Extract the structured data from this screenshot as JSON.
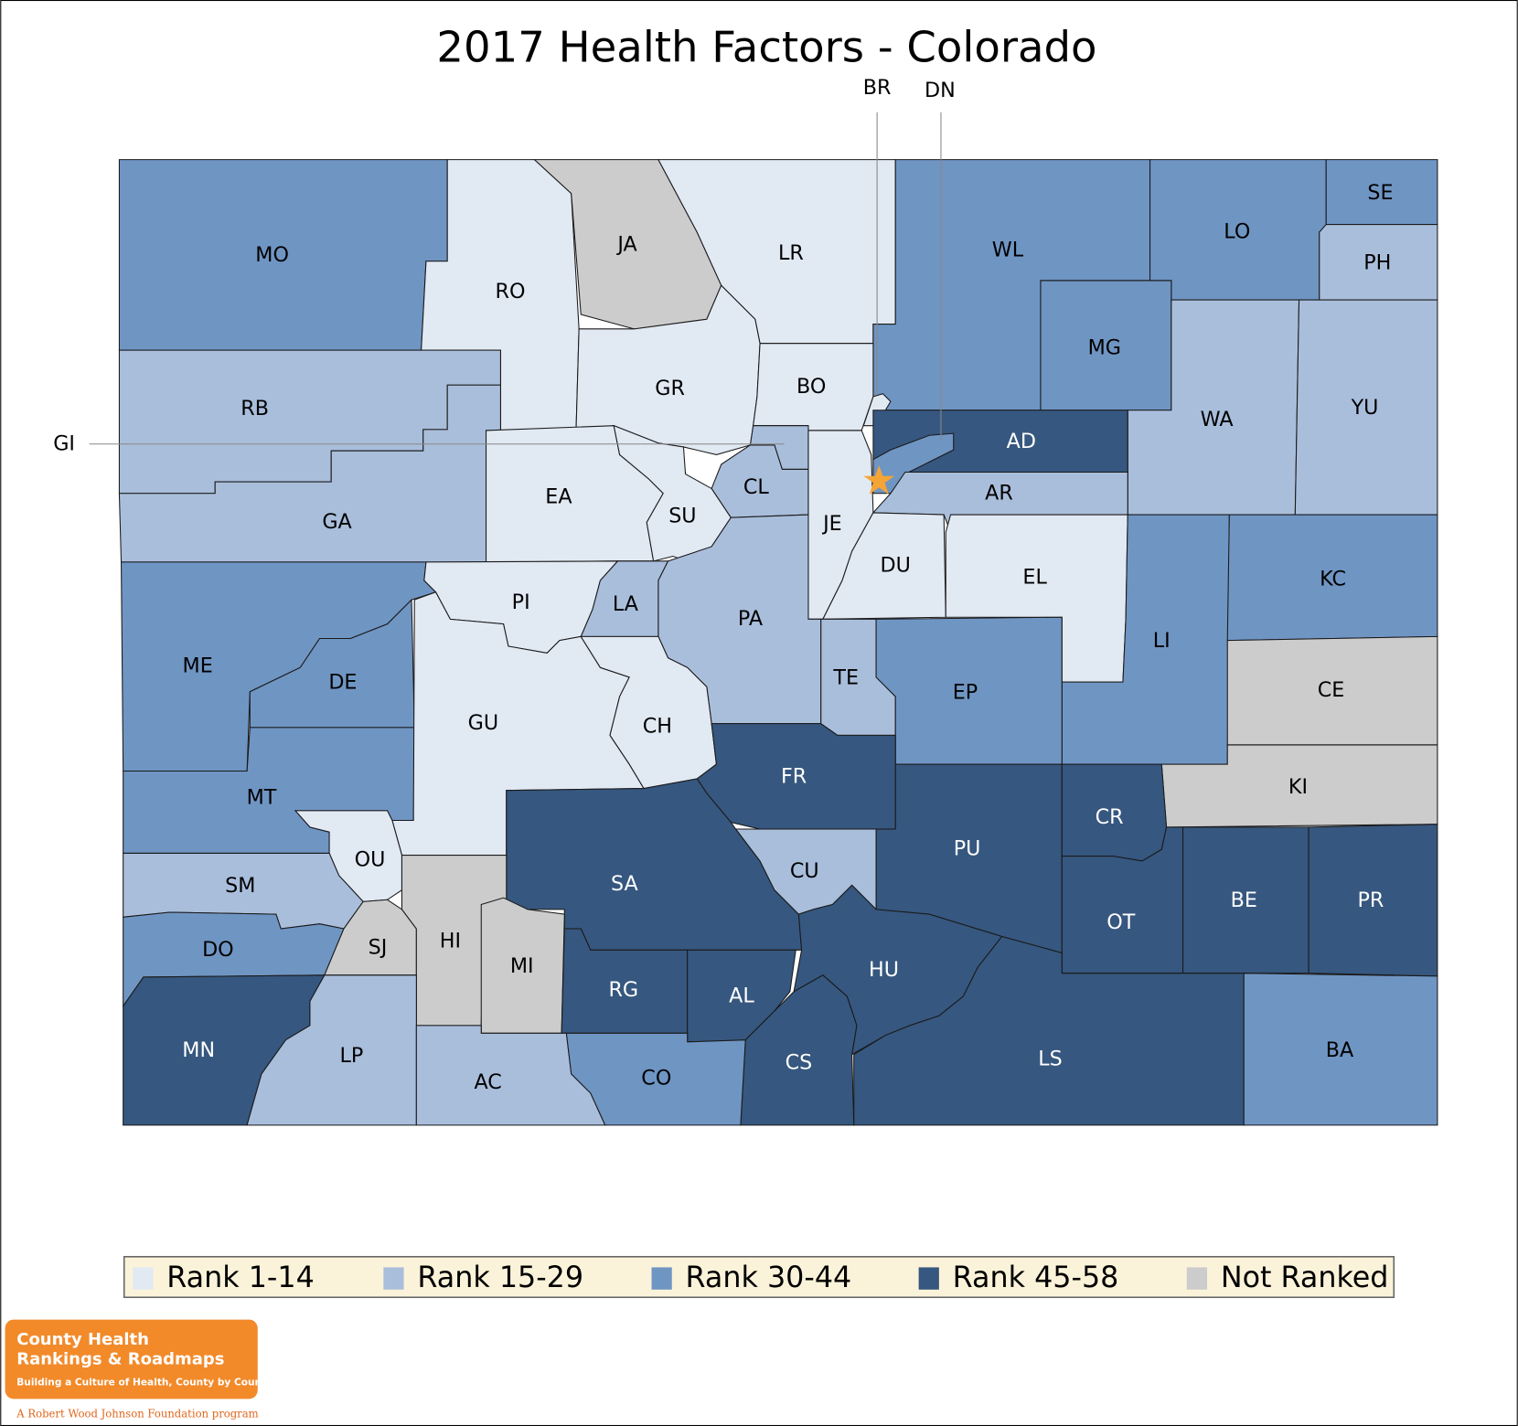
{
  "title": "2017 Health Factors - Colorado",
  "colors": {
    "rank_1_14": "#e1e9f3",
    "rank_15_29": "#a9bedb",
    "rank_30_44": "#6f95c3",
    "rank_45_58": "#36577f",
    "not_ranked": "#cccccc",
    "legend_bg": "#fbf3d9",
    "highlight_star": "#f5a535",
    "logo_orange": "#f28a2a"
  },
  "legend": [
    {
      "label": "Rank 1-14",
      "class": "rank_1_14"
    },
    {
      "label": "Rank 15-29",
      "class": "rank_15_29"
    },
    {
      "label": "Rank 30-44",
      "class": "rank_30_44"
    },
    {
      "label": "Rank 45-58",
      "class": "rank_45_58"
    },
    {
      "label": "Not Ranked",
      "class": "not_ranked"
    }
  ],
  "counties": [
    {
      "code": "MO",
      "class": "rank_30_44"
    },
    {
      "code": "RO",
      "class": "rank_1_14"
    },
    {
      "code": "JA",
      "class": "not_ranked"
    },
    {
      "code": "LR",
      "class": "rank_1_14"
    },
    {
      "code": "WL",
      "class": "rank_30_44"
    },
    {
      "code": "LO",
      "class": "rank_30_44"
    },
    {
      "code": "SE",
      "class": "rank_30_44"
    },
    {
      "code": "PH",
      "class": "rank_15_29"
    },
    {
      "code": "MG",
      "class": "rank_30_44"
    },
    {
      "code": "WA",
      "class": "rank_15_29"
    },
    {
      "code": "YU",
      "class": "rank_15_29"
    },
    {
      "code": "RB",
      "class": "rank_15_29"
    },
    {
      "code": "GA",
      "class": "rank_15_29"
    },
    {
      "code": "GR",
      "class": "rank_1_14"
    },
    {
      "code": "BO",
      "class": "rank_1_14"
    },
    {
      "code": "BR",
      "class": "rank_1_14"
    },
    {
      "code": "EA",
      "class": "rank_1_14"
    },
    {
      "code": "SU",
      "class": "rank_1_14"
    },
    {
      "code": "CL",
      "class": "rank_15_29"
    },
    {
      "code": "GI",
      "class": "rank_15_29"
    },
    {
      "code": "JE",
      "class": "rank_1_14"
    },
    {
      "code": "AD",
      "class": "rank_45_58"
    },
    {
      "code": "DN",
      "class": "rank_30_44"
    },
    {
      "code": "AR",
      "class": "rank_15_29"
    },
    {
      "code": "DU",
      "class": "rank_1_14"
    },
    {
      "code": "EL",
      "class": "rank_1_14"
    },
    {
      "code": "LI",
      "class": "rank_30_44"
    },
    {
      "code": "KC",
      "class": "rank_30_44"
    },
    {
      "code": "CE",
      "class": "not_ranked"
    },
    {
      "code": "KI",
      "class": "not_ranked"
    },
    {
      "code": "ME",
      "class": "rank_30_44"
    },
    {
      "code": "DE",
      "class": "rank_30_44"
    },
    {
      "code": "MT",
      "class": "rank_30_44"
    },
    {
      "code": "PI",
      "class": "rank_1_14"
    },
    {
      "code": "LA",
      "class": "rank_15_29"
    },
    {
      "code": "PA",
      "class": "rank_15_29"
    },
    {
      "code": "TE",
      "class": "rank_15_29"
    },
    {
      "code": "EP",
      "class": "rank_30_44"
    },
    {
      "code": "GU",
      "class": "rank_1_14"
    },
    {
      "code": "CH",
      "class": "rank_1_14"
    },
    {
      "code": "FR",
      "class": "rank_45_58"
    },
    {
      "code": "PU",
      "class": "rank_45_58"
    },
    {
      "code": "CR",
      "class": "rank_45_58"
    },
    {
      "code": "OT",
      "class": "rank_45_58"
    },
    {
      "code": "BE",
      "class": "rank_45_58"
    },
    {
      "code": "PR",
      "class": "rank_45_58"
    },
    {
      "code": "SA",
      "class": "rank_45_58"
    },
    {
      "code": "CU",
      "class": "rank_15_29"
    },
    {
      "code": "OU",
      "class": "rank_1_14"
    },
    {
      "code": "SM",
      "class": "rank_15_29"
    },
    {
      "code": "DO",
      "class": "rank_30_44"
    },
    {
      "code": "SJ",
      "class": "not_ranked"
    },
    {
      "code": "HI",
      "class": "not_ranked"
    },
    {
      "code": "MI",
      "class": "not_ranked"
    },
    {
      "code": "RG",
      "class": "rank_45_58"
    },
    {
      "code": "AL",
      "class": "rank_45_58"
    },
    {
      "code": "HU",
      "class": "rank_45_58"
    },
    {
      "code": "LS",
      "class": "rank_45_58"
    },
    {
      "code": "BA",
      "class": "rank_30_44"
    },
    {
      "code": "CS",
      "class": "rank_45_58"
    },
    {
      "code": "MN",
      "class": "rank_45_58"
    },
    {
      "code": "LP",
      "class": "rank_15_29"
    },
    {
      "code": "AC",
      "class": "rank_15_29"
    },
    {
      "code": "CO",
      "class": "rank_30_44"
    }
  ],
  "logo": {
    "line1": "County Health",
    "line2": "Rankings & Roadmaps",
    "tagline": "Building a Culture of Health, County by County",
    "sponsor": "A Robert Wood Johnson Foundation program"
  }
}
